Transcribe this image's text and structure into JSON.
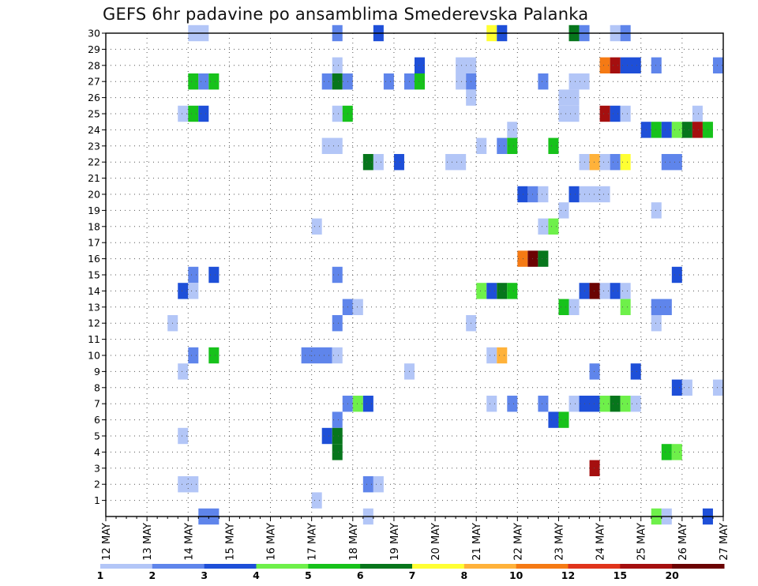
{
  "chart_data": {
    "type": "heatmap",
    "title": "GEFS 6hr padavine po ansamblima Smederevska Palanka",
    "xlabel": "",
    "ylabel": "",
    "x_unit": "6-hour steps from 12 MAY 00Z",
    "x_tick_labels": [
      "12 MAY",
      "13 MAY",
      "14 MAY",
      "15 MAY",
      "16 MAY",
      "17 MAY",
      "18 MAY",
      "19 MAY",
      "20 MAY",
      "21 MAY",
      "22 MAY",
      "23 MAY",
      "24 MAY",
      "25 MAY",
      "26 MAY",
      "27 MAY"
    ],
    "y_range": [
      0,
      30
    ],
    "y_tick_labels": [
      "1",
      "2",
      "3",
      "4",
      "5",
      "6",
      "7",
      "8",
      "9",
      "10",
      "11",
      "12",
      "13",
      "14",
      "15",
      "16",
      "17",
      "18",
      "19",
      "20",
      "21",
      "22",
      "23",
      "24",
      "25",
      "26",
      "27",
      "28",
      "29",
      "30"
    ],
    "legend": {
      "colors": [
        "#b3c6f7",
        "#5f85eb",
        "#1e4fd8",
        "#6ef04a",
        "#17c21b",
        "#07761c",
        "#ffff33",
        "#ffb23a",
        "#f57a14",
        "#e0341c",
        "#a50f0f",
        "#6b0303"
      ],
      "labels": [
        "1",
        "2",
        "3",
        "4",
        "5",
        "6",
        "7",
        "8",
        "10",
        "12",
        "15",
        "20"
      ]
    },
    "cells": [
      {
        "m": 30,
        "x": [
          [
            8,
            2,
            1
          ],
          [
            22,
            1,
            2
          ],
          [
            26,
            1,
            3
          ],
          [
            37,
            1,
            7
          ],
          [
            38,
            1,
            3
          ],
          [
            45,
            1,
            6
          ],
          [
            46,
            1,
            2
          ],
          [
            49,
            1,
            1
          ],
          [
            50,
            1,
            2
          ]
        ]
      },
      {
        "m": 28,
        "x": [
          [
            22,
            1,
            1
          ],
          [
            30,
            1,
            3
          ],
          [
            34,
            2,
            1
          ],
          [
            48,
            1,
            9
          ],
          [
            49,
            1,
            11
          ],
          [
            50,
            2,
            3
          ],
          [
            53,
            1,
            2
          ],
          [
            59,
            1,
            2
          ]
        ]
      },
      {
        "m": 27,
        "x": [
          [
            8,
            1,
            5
          ],
          [
            9,
            1,
            2
          ],
          [
            10,
            1,
            5
          ],
          [
            21,
            1,
            2
          ],
          [
            22,
            1,
            6
          ],
          [
            23,
            1,
            2
          ],
          [
            27,
            1,
            2
          ],
          [
            29,
            1,
            2
          ],
          [
            30,
            1,
            5
          ],
          [
            34,
            1,
            1
          ],
          [
            35,
            1,
            2
          ],
          [
            42,
            1,
            2
          ],
          [
            45,
            2,
            1
          ]
        ]
      },
      {
        "m": 26,
        "x": [
          [
            35,
            1,
            1
          ],
          [
            44,
            2,
            1
          ]
        ]
      },
      {
        "m": 25,
        "x": [
          [
            7,
            1,
            1
          ],
          [
            8,
            1,
            5
          ],
          [
            9,
            1,
            3
          ],
          [
            22,
            1,
            1
          ],
          [
            23,
            1,
            5
          ],
          [
            44,
            2,
            1
          ],
          [
            48,
            1,
            11
          ],
          [
            49,
            1,
            3
          ],
          [
            50,
            1,
            1
          ],
          [
            57,
            1,
            1
          ]
        ]
      },
      {
        "m": 24,
        "x": [
          [
            39,
            1,
            1
          ],
          [
            52,
            1,
            3
          ],
          [
            53,
            1,
            5
          ],
          [
            54,
            1,
            3
          ],
          [
            55,
            1,
            4
          ],
          [
            56,
            1,
            6
          ],
          [
            57,
            1,
            11
          ],
          [
            58,
            1,
            5
          ]
        ]
      },
      {
        "m": 23,
        "x": [
          [
            21,
            2,
            1
          ],
          [
            36,
            1,
            1
          ],
          [
            38,
            1,
            2
          ],
          [
            39,
            1,
            5
          ],
          [
            43,
            1,
            5
          ]
        ]
      },
      {
        "m": 22,
        "x": [
          [
            25,
            1,
            6
          ],
          [
            26,
            1,
            1
          ],
          [
            28,
            1,
            3
          ],
          [
            33,
            2,
            1
          ],
          [
            46,
            1,
            1
          ],
          [
            47,
            1,
            8
          ],
          [
            48,
            1,
            1
          ],
          [
            49,
            1,
            2
          ],
          [
            50,
            1,
            7
          ],
          [
            54,
            2,
            2
          ]
        ]
      },
      {
        "m": 21,
        "x": []
      },
      {
        "m": 20,
        "x": [
          [
            40,
            1,
            3
          ],
          [
            41,
            1,
            2
          ],
          [
            42,
            1,
            1
          ],
          [
            45,
            1,
            3
          ],
          [
            46,
            3,
            1
          ]
        ]
      },
      {
        "m": 19,
        "x": [
          [
            44,
            1,
            1
          ],
          [
            53,
            1,
            1
          ]
        ]
      },
      {
        "m": 18,
        "x": [
          [
            20,
            1,
            1
          ],
          [
            42,
            1,
            1
          ],
          [
            43,
            1,
            4
          ]
        ]
      },
      {
        "m": 17,
        "x": []
      },
      {
        "m": 16,
        "x": [
          [
            40,
            1,
            9
          ],
          [
            41,
            1,
            12
          ],
          [
            42,
            1,
            6
          ]
        ]
      },
      {
        "m": 15,
        "x": [
          [
            8,
            1,
            2
          ],
          [
            10,
            1,
            3
          ],
          [
            22,
            1,
            2
          ],
          [
            55,
            1,
            3
          ]
        ]
      },
      {
        "m": 14,
        "x": [
          [
            7,
            1,
            3
          ],
          [
            8,
            1,
            1
          ],
          [
            36,
            1,
            4
          ],
          [
            37,
            1,
            3
          ],
          [
            38,
            1,
            6
          ],
          [
            39,
            1,
            5
          ],
          [
            46,
            1,
            3
          ],
          [
            47,
            1,
            12
          ],
          [
            48,
            1,
            1
          ],
          [
            49,
            1,
            3
          ],
          [
            50,
            1,
            1
          ]
        ]
      },
      {
        "m": 13,
        "x": [
          [
            23,
            1,
            2
          ],
          [
            24,
            1,
            1
          ],
          [
            44,
            1,
            5
          ],
          [
            45,
            1,
            1
          ],
          [
            50,
            1,
            4
          ],
          [
            53,
            2,
            2
          ]
        ]
      },
      {
        "m": 12,
        "x": [
          [
            6,
            1,
            1
          ],
          [
            22,
            1,
            2
          ],
          [
            35,
            1,
            1
          ],
          [
            53,
            1,
            1
          ]
        ]
      },
      {
        "m": 11,
        "x": []
      },
      {
        "m": 10,
        "x": [
          [
            8,
            1,
            2
          ],
          [
            10,
            1,
            5
          ],
          [
            19,
            3,
            2
          ],
          [
            22,
            1,
            1
          ],
          [
            37,
            1,
            1
          ],
          [
            38,
            1,
            8
          ]
        ]
      },
      {
        "m": 9,
        "x": [
          [
            7,
            1,
            1
          ],
          [
            29,
            1,
            1
          ],
          [
            47,
            1,
            2
          ],
          [
            51,
            1,
            3
          ]
        ]
      },
      {
        "m": 8,
        "x": [
          [
            55,
            1,
            3
          ],
          [
            56,
            1,
            1
          ],
          [
            59,
            1,
            1
          ]
        ]
      },
      {
        "m": 7,
        "x": [
          [
            23,
            1,
            2
          ],
          [
            24,
            1,
            4
          ],
          [
            25,
            1,
            3
          ],
          [
            37,
            1,
            1
          ],
          [
            39,
            1,
            2
          ],
          [
            42,
            1,
            2
          ],
          [
            45,
            1,
            1
          ],
          [
            46,
            2,
            3
          ],
          [
            48,
            1,
            4
          ],
          [
            49,
            1,
            6
          ],
          [
            50,
            1,
            4
          ],
          [
            51,
            1,
            1
          ]
        ]
      },
      {
        "m": 6,
        "x": [
          [
            22,
            1,
            2
          ],
          [
            43,
            1,
            3
          ],
          [
            44,
            1,
            5
          ]
        ]
      },
      {
        "m": 5,
        "x": [
          [
            7,
            1,
            1
          ],
          [
            21,
            1,
            3
          ],
          [
            22,
            1,
            6
          ]
        ]
      },
      {
        "m": 4,
        "x": [
          [
            22,
            1,
            6
          ],
          [
            54,
            1,
            5
          ],
          [
            55,
            1,
            4
          ]
        ]
      },
      {
        "m": 3,
        "x": [
          [
            47,
            1,
            11
          ]
        ]
      },
      {
        "m": 2,
        "x": [
          [
            7,
            2,
            1
          ],
          [
            25,
            1,
            2
          ],
          [
            26,
            1,
            1
          ]
        ]
      },
      {
        "m": 1,
        "x": [
          [
            20,
            1,
            1
          ]
        ]
      },
      {
        "m": 0,
        "x": [
          [
            9,
            2,
            2
          ],
          [
            25,
            1,
            1
          ],
          [
            53,
            1,
            4
          ],
          [
            54,
            1,
            1
          ],
          [
            58,
            1,
            3
          ]
        ]
      }
    ]
  }
}
